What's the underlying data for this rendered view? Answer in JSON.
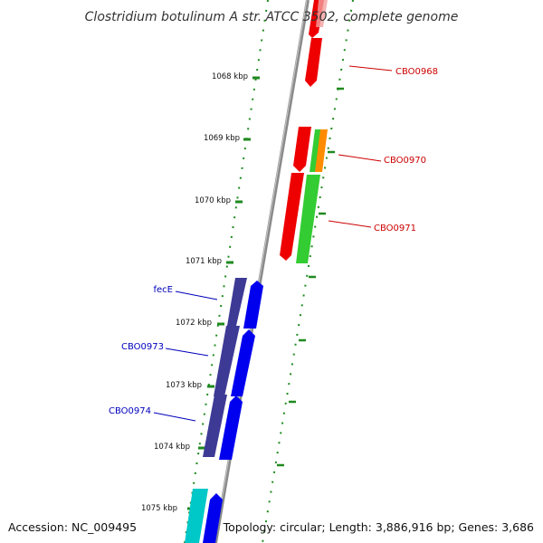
{
  "title": "Clostridium botulinum A str. ATCC 3502, complete genome",
  "footer": {
    "accession": "Accession: NC_009495",
    "summary": "Topology: circular; Length: 3,886,916 bp; Genes: 3,686"
  },
  "colors": {
    "backbone": "#8c8c8c",
    "dotted_track": "#1f8a1f",
    "right_strand_label": "#cc0000",
    "left_strand_label": "#0000bb",
    "cds_red": "#ee0000",
    "cds_green": "#33cc33",
    "cds_orange": "#ff8c00",
    "cds_blue": "#0000ee",
    "cds_purple": "#3d3a96",
    "cds_cyan": "#00c8c8"
  },
  "ticks": [
    {
      "kbp": 1068,
      "label": "1068 kbp"
    },
    {
      "kbp": 1069,
      "label": "1069 kbp"
    },
    {
      "kbp": 1070,
      "label": "1070 kbp"
    },
    {
      "kbp": 1071,
      "label": "1071 kbp"
    },
    {
      "kbp": 1072,
      "label": "1072 kbp"
    },
    {
      "kbp": 1073,
      "label": "1073 kbp"
    },
    {
      "kbp": 1074,
      "label": "1074 kbp"
    },
    {
      "kbp": 1075,
      "label": "1075 kbp"
    }
  ],
  "gene_labels": [
    {
      "text": "CBO0968",
      "side": "right"
    },
    {
      "text": "CBO0970",
      "side": "right"
    },
    {
      "text": "CBO0971",
      "side": "right"
    },
    {
      "text": "fecE",
      "side": "left"
    },
    {
      "text": "CBO0973",
      "side": "left"
    },
    {
      "text": "CBO0974",
      "side": "left"
    }
  ]
}
